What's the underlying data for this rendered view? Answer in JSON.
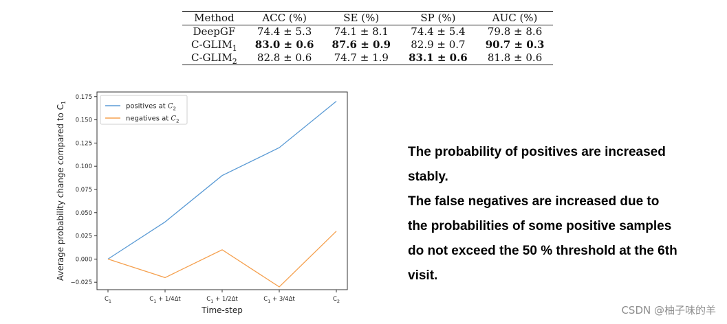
{
  "table": {
    "headers": [
      "Method",
      "ACC (%)",
      "SE (%)",
      "SP (%)",
      "AUC (%)"
    ],
    "rows": [
      {
        "method": "DeepGF",
        "method_sub": "",
        "cells": [
          "74.4 ± 5.3",
          "74.1 ± 8.1",
          "74.4 ± 5.4",
          "79.8 ± 8.6"
        ],
        "bold": [
          false,
          false,
          false,
          false
        ]
      },
      {
        "method": "C-GLIM",
        "method_sub": "1",
        "cells": [
          "83.0 ± 0.6",
          "87.6 ± 0.9",
          "82.9 ± 0.7",
          "90.7 ± 0.3"
        ],
        "bold": [
          true,
          true,
          false,
          true
        ]
      },
      {
        "method": "C-GLIM",
        "method_sub": "2",
        "cells": [
          "82.8 ± 0.6",
          "74.7 ± 1.9",
          "83.1 ± 0.6",
          "81.8 ± 0.6"
        ],
        "bold": [
          false,
          false,
          true,
          false
        ]
      }
    ]
  },
  "chart_data": {
    "type": "line",
    "title": "",
    "xlabel": "Time-step",
    "ylabel": "Average probability change compared to C",
    "ylabel_sub": "1",
    "x": [
      {
        "base": "C",
        "sub": "1",
        "suffix": ""
      },
      {
        "base": "C",
        "sub": "1",
        "suffix": " + 1/4Δt"
      },
      {
        "base": "C",
        "sub": "1",
        "suffix": " + 1/2Δt"
      },
      {
        "base": "C",
        "sub": "1",
        "suffix": " + 3/4Δt"
      },
      {
        "base": "C",
        "sub": "2",
        "suffix": ""
      }
    ],
    "ylim": [
      -0.033,
      0.18
    ],
    "yticks": [
      "−0.025",
      "0.000",
      "0.025",
      "0.050",
      "0.075",
      "0.100",
      "0.125",
      "0.150",
      "0.175"
    ],
    "ytick_values": [
      -0.025,
      0,
      0.025,
      0.05,
      0.075,
      0.1,
      0.125,
      0.15,
      0.175
    ],
    "grid": false,
    "legend_position": "top-left",
    "series": [
      {
        "name": "positives at ",
        "name_var": "C",
        "name_sub": "2",
        "color": "#5b9bd5",
        "values": [
          0.0,
          0.04,
          0.09,
          0.12,
          0.17
        ]
      },
      {
        "name": "negatives at ",
        "name_var": "C",
        "name_sub": "2",
        "color": "#f5a04e",
        "values": [
          0.0,
          -0.02,
          0.01,
          -0.03,
          0.03
        ]
      }
    ]
  },
  "caption": {
    "lines": [
      "The probability of positives are increased",
      "stably.",
      "The false negatives are increased due to",
      "the probabilities of some positive samples",
      "do not exceed the 50 % threshold at the 6th",
      "visit."
    ]
  },
  "watermark": "CSDN @柚子味的羊"
}
